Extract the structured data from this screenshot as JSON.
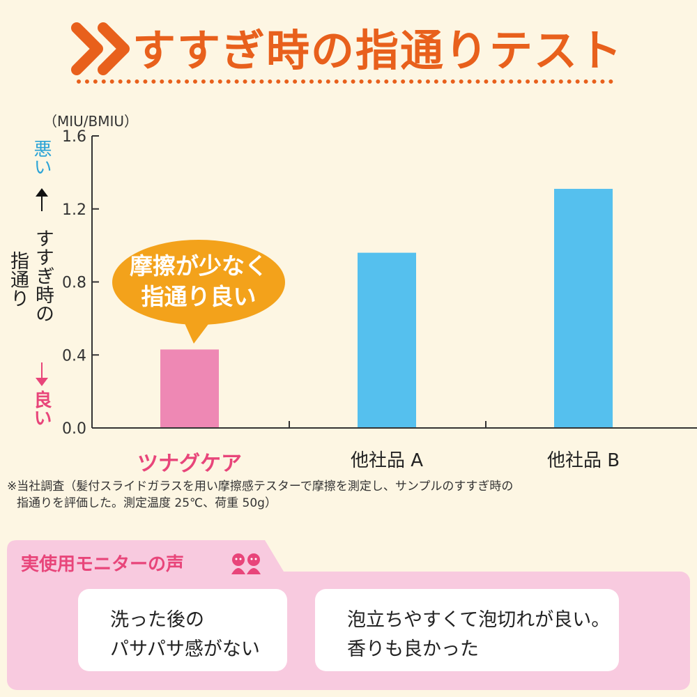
{
  "title": "すすぎ時の指通りテスト",
  "unit_label": "（MIU/BMIU）",
  "y_axis": {
    "worse_label": "悪い",
    "better_label": "良い",
    "title_line1": "すすぎ時の",
    "title_line2": "指通り"
  },
  "callout": {
    "line1": "摩擦が少なく",
    "line2": "指通り良い"
  },
  "chart_data": {
    "type": "bar",
    "categories": [
      "ツナグケア",
      "他社品 A",
      "他社品 B"
    ],
    "values": [
      0.43,
      0.96,
      1.31
    ],
    "ylim": [
      0,
      1.6
    ],
    "yticks": [
      "0.0",
      "0.4",
      "0.8",
      "1.2",
      "1.6"
    ],
    "ytick_values": [
      0,
      0.4,
      0.8,
      1.2,
      1.6
    ],
    "grid": false,
    "bar_colors": [
      "#ee88b4",
      "#55c0ee",
      "#55c0ee"
    ]
  },
  "note": {
    "line1": "※当社調査（髪付スライドガラスを用い摩擦感テスターで摩擦を測定し、サンプルのすすぎ時の",
    "line2": "指通りを評価した。測定温度 25℃、荷重 50g）"
  },
  "voices": {
    "title": "実使用モニターの声",
    "card1": {
      "line1": "洗った後の",
      "line2": "パサパサ感がない"
    },
    "card2": {
      "line1": "泡立ちやすくて泡切れが良い。",
      "line2": "香りも良かった"
    }
  },
  "colors": {
    "title": "#e8601c",
    "highlight": "#e8457a",
    "blue": "#55c0ee",
    "callout": "#f3a21b",
    "panel": "#f8cadf"
  },
  "icons": [
    "chevron-double-right-icon",
    "two-people-icon",
    "arrow-up-icon",
    "arrow-down-icon"
  ]
}
